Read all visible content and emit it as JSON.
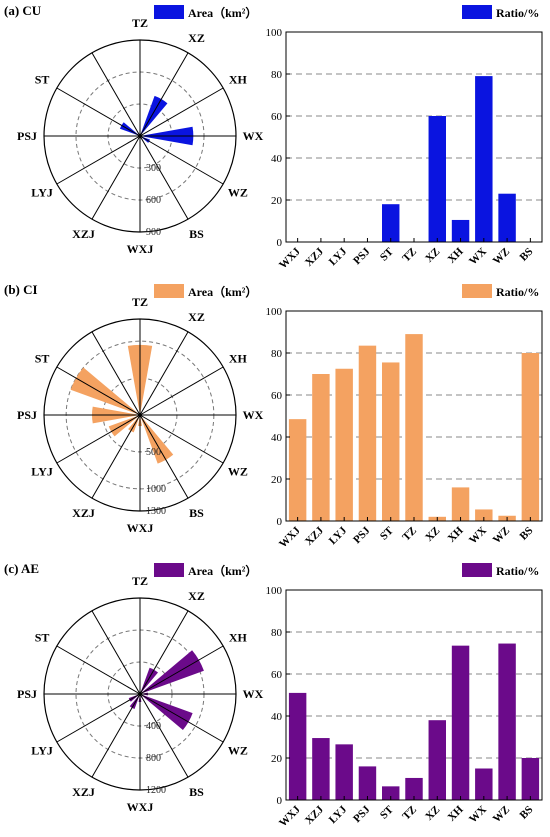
{
  "panels": [
    {
      "panel_label": "(a) CU",
      "color": "#0a14e0",
      "chart_data": [
        {
          "type": "polar-bar",
          "legend": "Area（km²）",
          "directions": [
            "TZ",
            "XZ",
            "XH",
            "WX",
            "WZ",
            "BS",
            "WXJ",
            "XZJ",
            "LYJ",
            "PSJ",
            "ST"
          ],
          "values": [
            0,
            400,
            0,
            500,
            100,
            0,
            0,
            0,
            0,
            0,
            200
          ],
          "rmax": 900,
          "radial_ticks": [
            300,
            600,
            900
          ]
        },
        {
          "type": "bar",
          "legend": "Ratio/%",
          "categories": [
            "WXJ",
            "XZJ",
            "LYJ",
            "PSJ",
            "ST",
            "TZ",
            "XZ",
            "XH",
            "WX",
            "WZ",
            "BS"
          ],
          "values": [
            0,
            0,
            0,
            0,
            18,
            0,
            60,
            10.5,
            79,
            23,
            0
          ],
          "ylim": [
            0,
            100
          ],
          "yticks": [
            0,
            20,
            40,
            60,
            80,
            100
          ]
        }
      ]
    },
    {
      "panel_label": "(b) CI",
      "color": "#f4a261",
      "chart_data": [
        {
          "type": "polar-bar",
          "legend": "Area（km²）",
          "directions": [
            "TZ",
            "XZ",
            "XH",
            "WX",
            "WZ",
            "BS",
            "WXJ",
            "XZJ",
            "LYJ",
            "PSJ",
            "ST"
          ],
          "values": [
            950,
            0,
            0,
            50,
            0,
            700,
            150,
            250,
            450,
            650,
            1000
          ],
          "rmax": 1300,
          "radial_ticks": [
            500,
            1000,
            1300
          ]
        },
        {
          "type": "bar",
          "legend": "Ratio/%",
          "categories": [
            "WXJ",
            "XZJ",
            "LYJ",
            "PSJ",
            "ST",
            "TZ",
            "XZ",
            "XH",
            "WX",
            "WZ",
            "BS"
          ],
          "values": [
            48.5,
            70,
            72.5,
            83.5,
            75.5,
            89,
            2,
            16,
            5.5,
            2.5,
            80
          ],
          "ylim": [
            0,
            100
          ],
          "yticks": [
            0,
            20,
            40,
            60,
            80,
            100
          ]
        }
      ]
    },
    {
      "panel_label": "(c) AE",
      "color": "#6b0a8a",
      "chart_data": [
        {
          "type": "polar-bar",
          "legend": "Area（km²）",
          "directions": [
            "TZ",
            "XZ",
            "XH",
            "WX",
            "WZ",
            "BS",
            "WXJ",
            "XZJ",
            "LYJ",
            "PSJ",
            "ST"
          ],
          "values": [
            0,
            350,
            850,
            100,
            700,
            50,
            100,
            200,
            150,
            0,
            0
          ],
          "rmax": 1200,
          "radial_ticks": [
            400,
            800,
            1200
          ]
        },
        {
          "type": "bar",
          "legend": "Ratio/%",
          "categories": [
            "WXJ",
            "XZJ",
            "LYJ",
            "PSJ",
            "ST",
            "TZ",
            "XZ",
            "XH",
            "WX",
            "WZ",
            "BS"
          ],
          "values": [
            51,
            29.5,
            26.5,
            16,
            6.5,
            10.5,
            38,
            73.5,
            15,
            74.5,
            20
          ],
          "ylim": [
            0,
            100
          ],
          "yticks": [
            0,
            20,
            40,
            60,
            80,
            100
          ]
        }
      ]
    }
  ]
}
